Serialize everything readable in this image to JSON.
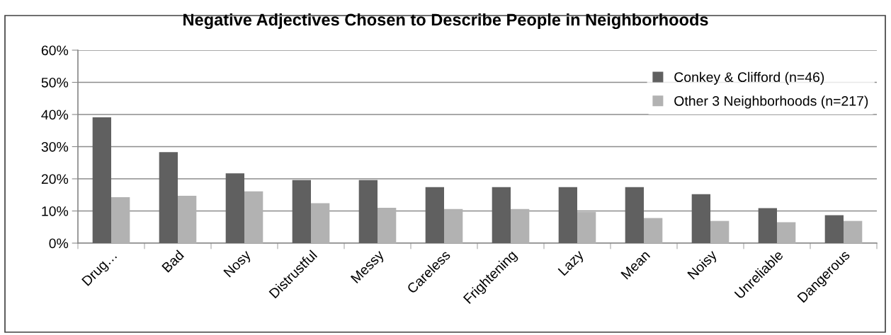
{
  "chart_data": {
    "type": "bar",
    "title": "Negative Adjectives Chosen to Describe People in Neighborhoods",
    "categories": [
      "Drug…",
      "Bad",
      "Nosy",
      "Distrustful",
      "Messy",
      "Careless",
      "Frightening",
      "Lazy",
      "Mean",
      "Noisy",
      "Unreliable",
      "Dangerous"
    ],
    "series": [
      {
        "name": "Conkey & Clifford (n=46)",
        "color": "#606060",
        "values": [
          39.1,
          28.3,
          21.7,
          19.6,
          19.6,
          17.4,
          17.4,
          17.4,
          17.4,
          15.2,
          10.9,
          8.7
        ]
      },
      {
        "name": "Other 3 Neighborhoods (n=217)",
        "color": "#b2b2b2",
        "values": [
          14.3,
          14.7,
          16.1,
          12.4,
          11.0,
          10.6,
          10.6,
          9.7,
          7.8,
          6.9,
          6.5,
          6.9
        ]
      }
    ],
    "ylim": [
      0,
      60
    ],
    "yticks": [
      {
        "value": 0,
        "label": "0%"
      },
      {
        "value": 10,
        "label": "10%"
      },
      {
        "value": 20,
        "label": "20%"
      },
      {
        "value": 30,
        "label": "30%"
      },
      {
        "value": 40,
        "label": "40%"
      },
      {
        "value": 50,
        "label": "50%"
      },
      {
        "value": 60,
        "label": "60%"
      }
    ],
    "grid": "y",
    "legend": "top right"
  }
}
